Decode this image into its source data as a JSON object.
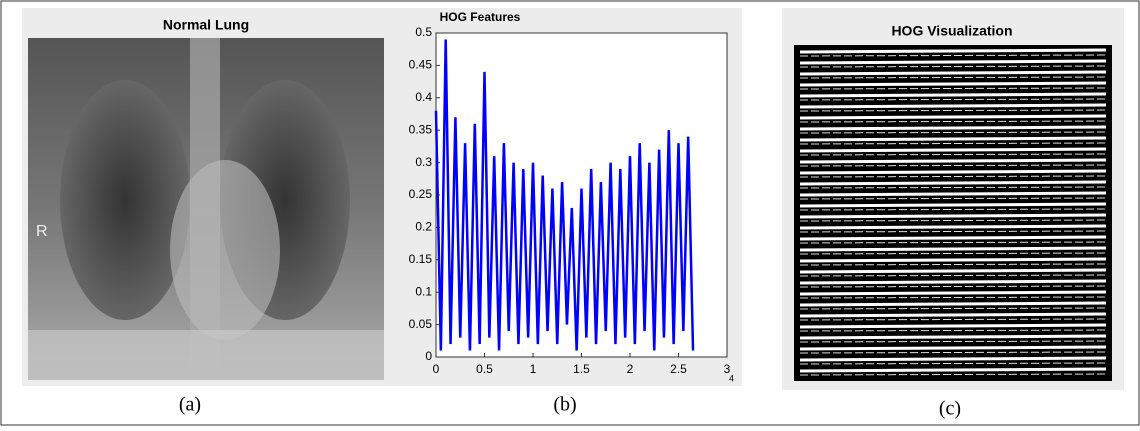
{
  "panels": {
    "a": {
      "title": "Normal Lung",
      "marker": "R",
      "caption": "(a)"
    },
    "c": {
      "title": "HOG Visualization",
      "caption": "(c)"
    }
  },
  "chart_data": {
    "type": "line",
    "title": "HOG Features",
    "caption": "(b)",
    "x_exponent": "4",
    "x": [
      0,
      0.05,
      0.1,
      0.15,
      0.2,
      0.25,
      0.3,
      0.35,
      0.4,
      0.45,
      0.5,
      0.55,
      0.6,
      0.65,
      0.7,
      0.75,
      0.8,
      0.85,
      0.9,
      0.95,
      1,
      1.05,
      1.1,
      1.15,
      1.2,
      1.25,
      1.3,
      1.35,
      1.4,
      1.45,
      1.5,
      1.55,
      1.6,
      1.65,
      1.7,
      1.75,
      1.8,
      1.85,
      1.9,
      1.95,
      2,
      2.05,
      2.1,
      2.15,
      2.2,
      2.25,
      2.3,
      2.35,
      2.4,
      2.45,
      2.5,
      2.55,
      2.6,
      2.65
    ],
    "series": [
      {
        "color": "#0000ff",
        "values": [
          0.38,
          0.01,
          0.49,
          0.02,
          0.37,
          0.03,
          0.33,
          0.01,
          0.36,
          0.02,
          0.44,
          0.03,
          0.31,
          0.01,
          0.33,
          0.04,
          0.3,
          0.02,
          0.29,
          0.03,
          0.3,
          0.02,
          0.28,
          0.04,
          0.26,
          0.02,
          0.27,
          0.05,
          0.23,
          0.01,
          0.26,
          0.03,
          0.29,
          0.02,
          0.27,
          0.04,
          0.3,
          0.02,
          0.29,
          0.03,
          0.31,
          0.02,
          0.33,
          0.04,
          0.3,
          0.01,
          0.32,
          0.03,
          0.35,
          0.02,
          0.33,
          0.04,
          0.34,
          0.01
        ]
      }
    ],
    "xlim": [
      0,
      3
    ],
    "ylim": [
      0,
      0.5
    ],
    "xticks": [
      0,
      0.5,
      1,
      1.5,
      2,
      2.5,
      3
    ],
    "yticks": [
      0,
      0.05,
      0.1,
      0.15,
      0.2,
      0.25,
      0.3,
      0.35,
      0.4,
      0.45,
      0.5
    ]
  }
}
